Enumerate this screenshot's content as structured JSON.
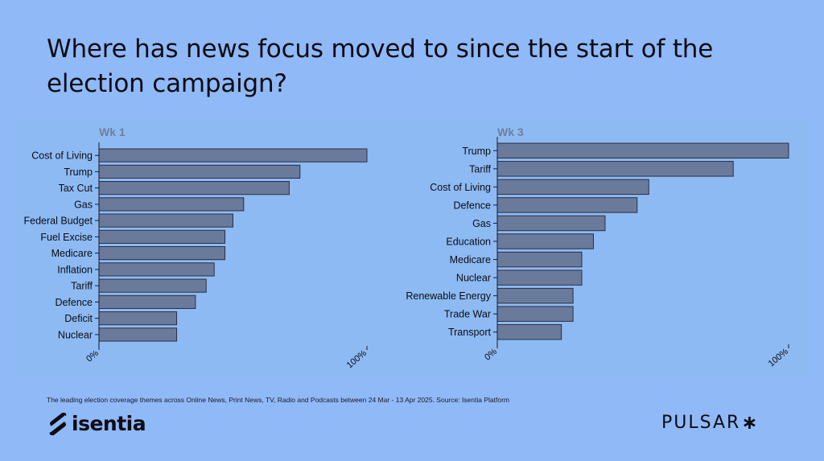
{
  "title": "Where has news focus moved to since the start of the election campaign?",
  "footnote": "The leading election coverage themes across  Online News, Print News, TV, Radio and Podcasts between 24 Mar - 13 Apr 2025. Source: Isentia Platform",
  "logos": {
    "left": "isentia",
    "right": "PULSAR",
    "right_star": "∗"
  },
  "colors": {
    "background": "#8fb9f7",
    "bar": "#6a7a9b",
    "bar_stroke": "#2a2f45",
    "panel_title": "#6f7f9e"
  },
  "chart_data": [
    {
      "type": "bar",
      "orientation": "horizontal",
      "title": "Wk 1",
      "categories": [
        "Cost of Living",
        "Trump",
        "Tax Cut",
        "Gas",
        "Federal Budget",
        "Fuel Excise",
        "Medicare",
        "Inflation",
        "Tariff",
        "Defence",
        "Deficit",
        "Nuclear"
      ],
      "values": [
        100,
        75,
        71,
        54,
        50,
        47,
        47,
        43,
        40,
        36,
        29,
        29
      ],
      "xlim": [
        0,
        100
      ],
      "ticks": [
        "0%",
        "100%"
      ],
      "xlabel": "",
      "ylabel": "",
      "grid": false
    },
    {
      "type": "bar",
      "orientation": "horizontal",
      "title": "Wk 3",
      "categories": [
        "Trump",
        "Tariff",
        "Cost of Living",
        "Defence",
        "Gas",
        "Education",
        "Medicare",
        "Nuclear",
        "Renewable Energy",
        "Trade War",
        "Transport"
      ],
      "values": [
        100,
        81,
        52,
        48,
        37,
        33,
        29,
        29,
        26,
        26,
        22
      ],
      "xlim": [
        0,
        100
      ],
      "ticks": [
        "0%",
        "100%"
      ],
      "xlabel": "",
      "ylabel": "",
      "grid": false
    }
  ]
}
